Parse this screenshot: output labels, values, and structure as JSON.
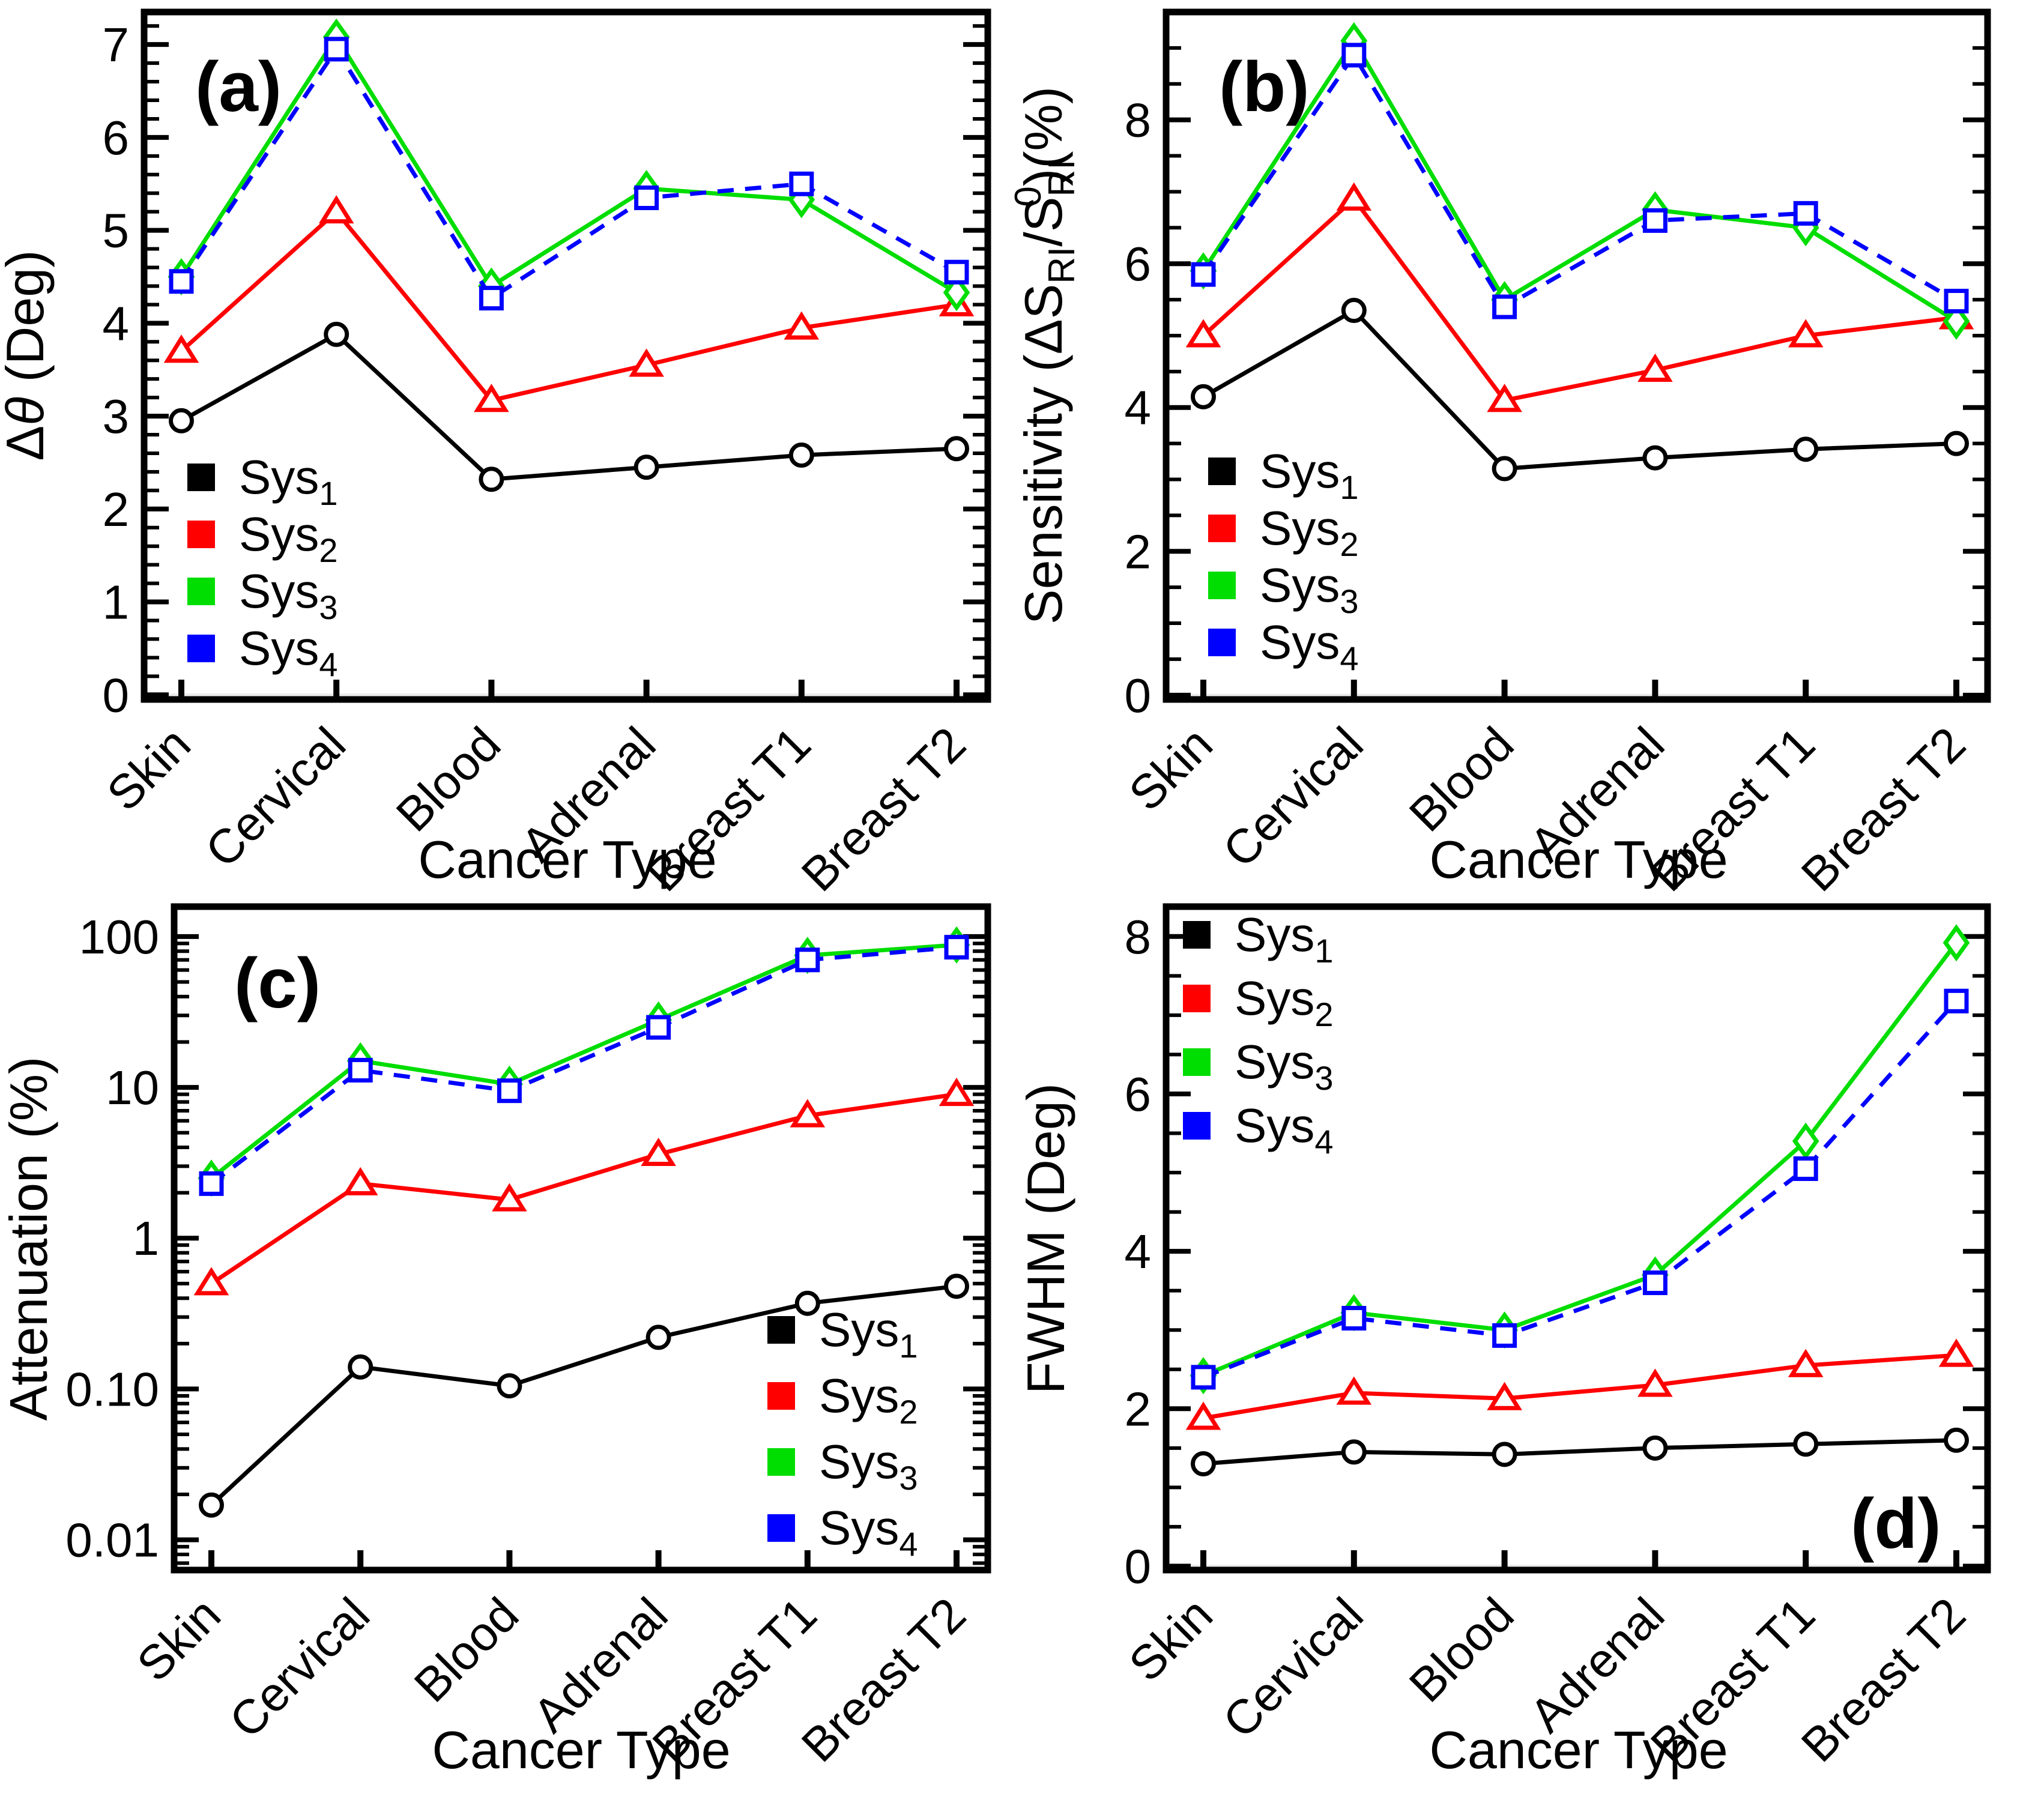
{
  "shared": {
    "categories": [
      "Skin",
      "Cervical",
      "Blood",
      "Adrenal",
      "Breast T1",
      "Breast T2"
    ],
    "xlabel": "Cancer Type",
    "legend_entries": [
      {
        "base": "Sys",
        "sub": "1",
        "color": "#000000"
      },
      {
        "base": "Sys",
        "sub": "2",
        "color": "#ff0000"
      },
      {
        "base": "Sys",
        "sub": "3",
        "color": "#00dd00"
      },
      {
        "base": "Sys",
        "sub": "4",
        "color": "#0000ff"
      }
    ],
    "colors": {
      "sys1": "#000000",
      "sys2": "#ff0000",
      "sys3": "#00dd00",
      "sys4": "#0000ff",
      "zero_gridline": "#ebebeb",
      "axis": "#000000"
    }
  },
  "chart_data": [
    {
      "key": "a",
      "panel_label": "(a)",
      "type": "line",
      "yscale": "linear",
      "ylim": [
        -0.05,
        7.35
      ],
      "yticks": [
        0,
        1,
        2,
        3,
        4,
        5,
        6,
        7
      ],
      "ytick_labels": [
        "0",
        "1",
        "2",
        "3",
        "4",
        "5",
        "6",
        "7"
      ],
      "minor_step": 0.2,
      "ylabel_parts": [
        {
          "t": "Δ"
        },
        {
          "t": "θ",
          "italic": true
        },
        {
          "t": " (Deg)"
        }
      ],
      "series": [
        {
          "name": "Sys1",
          "marker": "circle",
          "color": "#000000",
          "line": "solid",
          "values": [
            2.95,
            3.88,
            2.32,
            2.45,
            2.58,
            2.65
          ]
        },
        {
          "name": "Sys2",
          "marker": "triangle",
          "color": "#ff0000",
          "line": "solid",
          "values": [
            3.7,
            5.2,
            3.17,
            3.55,
            3.95,
            4.2
          ]
        },
        {
          "name": "Sys3",
          "marker": "diamond",
          "color": "#00dd00",
          "line": "solid",
          "values": [
            4.5,
            7.08,
            4.4,
            5.45,
            5.33,
            4.33
          ]
        },
        {
          "name": "Sys4",
          "marker": "square",
          "color": "#0000ff",
          "line": "dashed",
          "values": [
            4.45,
            6.95,
            4.27,
            5.35,
            5.5,
            4.55
          ]
        }
      ]
    },
    {
      "key": "b",
      "panel_label": "(b)",
      "type": "line",
      "yscale": "linear",
      "ylim": [
        -0.06,
        9.5
      ],
      "yticks": [
        0,
        2,
        4,
        6,
        8
      ],
      "ytick_labels": [
        "0",
        "2",
        "4",
        "6",
        "8"
      ],
      "minor_step": 0.5,
      "ylabel_parts": [
        {
          "t": "Sensitivity (ΔS"
        },
        {
          "t": "RI",
          "sub": true
        },
        {
          "t": "/S"
        },
        {
          "t": "RI",
          "sub": true
        },
        {
          "t": "0",
          "sup": true,
          "stack": true
        },
        {
          "t": ")(%)"
        }
      ],
      "series": [
        {
          "name": "Sys1",
          "marker": "circle",
          "color": "#000000",
          "line": "solid",
          "values": [
            4.15,
            5.35,
            3.15,
            3.3,
            3.42,
            3.5
          ]
        },
        {
          "name": "Sys2",
          "marker": "triangle",
          "color": "#ff0000",
          "line": "solid",
          "values": [
            5.0,
            6.9,
            4.1,
            4.52,
            5.0,
            5.25
          ]
        },
        {
          "name": "Sys3",
          "marker": "diamond",
          "color": "#00dd00",
          "line": "solid",
          "values": [
            5.9,
            9.1,
            5.5,
            6.75,
            6.5,
            5.2
          ]
        },
        {
          "name": "Sys4",
          "marker": "square",
          "color": "#0000ff",
          "line": "dashed",
          "values": [
            5.85,
            8.9,
            5.4,
            6.6,
            6.7,
            5.48
          ]
        }
      ]
    },
    {
      "key": "c",
      "panel_label": "(c)",
      "type": "line",
      "yscale": "log",
      "ylim": [
        0.0063,
        158
      ],
      "yticks": [
        100,
        10,
        1,
        0.1,
        0.01
      ],
      "ytick_labels": [
        "100",
        "10",
        "1",
        "0.10",
        "0.01"
      ],
      "ylabel_parts": [
        {
          "t": "Attenuation (%)"
        }
      ],
      "series": [
        {
          "name": "Sys1",
          "marker": "circle",
          "color": "#000000",
          "line": "solid",
          "values": [
            0.017,
            0.14,
            0.105,
            0.22,
            0.37,
            0.48
          ]
        },
        {
          "name": "Sys2",
          "marker": "triangle",
          "color": "#ff0000",
          "line": "solid",
          "values": [
            0.5,
            2.3,
            1.8,
            3.6,
            6.5,
            9.0
          ]
        },
        {
          "name": "Sys3",
          "marker": "diamond",
          "color": "#00dd00",
          "line": "solid",
          "values": [
            2.5,
            15.0,
            10.5,
            28.0,
            75.0,
            88.0
          ]
        },
        {
          "name": "Sys4",
          "marker": "square",
          "color": "#0000ff",
          "line": "dashed",
          "values": [
            2.3,
            13.0,
            9.5,
            25.0,
            70.0,
            85.0
          ]
        }
      ]
    },
    {
      "key": "d",
      "panel_label": "(d)",
      "type": "line",
      "yscale": "linear",
      "ylim": [
        -0.05,
        8.38
      ],
      "yticks": [
        0,
        2,
        4,
        6,
        8
      ],
      "ytick_labels": [
        "0",
        "2",
        "4",
        "6",
        "8"
      ],
      "minor_step": 0.5,
      "ylabel_parts": [
        {
          "t": "FWHM (Deg)"
        }
      ],
      "series": [
        {
          "name": "Sys1",
          "marker": "circle",
          "color": "#000000",
          "line": "solid",
          "values": [
            1.3,
            1.45,
            1.42,
            1.5,
            1.55,
            1.6
          ]
        },
        {
          "name": "Sys2",
          "marker": "triangle",
          "color": "#ff0000",
          "line": "solid",
          "values": [
            1.88,
            2.2,
            2.13,
            2.3,
            2.55,
            2.68
          ]
        },
        {
          "name": "Sys3",
          "marker": "diamond",
          "color": "#00dd00",
          "line": "solid",
          "values": [
            2.42,
            3.22,
            3.0,
            3.7,
            5.4,
            7.92
          ]
        },
        {
          "name": "Sys4",
          "marker": "square",
          "color": "#0000ff",
          "line": "dashed",
          "values": [
            2.4,
            3.15,
            2.93,
            3.6,
            5.05,
            7.18
          ]
        }
      ]
    }
  ]
}
